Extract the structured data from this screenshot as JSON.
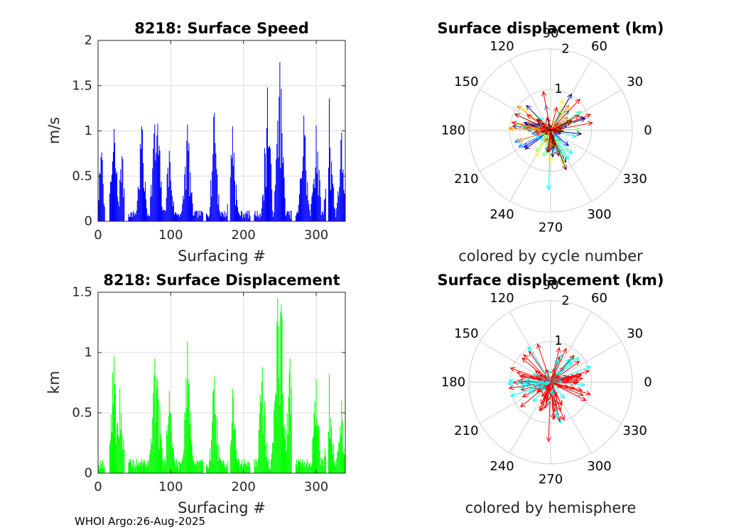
{
  "footer": "WHOI Argo:26-Aug-2025",
  "chart_data": [
    {
      "type": "bar",
      "title": "8218: Surface Speed",
      "xlabel": "Surfacing #",
      "ylabel": "m/s",
      "xlim": [
        0,
        340
      ],
      "ylim": [
        0,
        2
      ],
      "xticks": [
        "0",
        "100",
        "200",
        "300"
      ],
      "yticks": [
        "0",
        "0.5",
        "1",
        "1.5",
        "2"
      ],
      "color": "#0000ff",
      "peaks": [
        {
          "x": 5,
          "y": 0.76
        },
        {
          "x": 22,
          "y": 1.02
        },
        {
          "x": 33,
          "y": 0.72
        },
        {
          "x": 60,
          "y": 1.05
        },
        {
          "x": 78,
          "y": 1.07
        },
        {
          "x": 82,
          "y": 1.08
        },
        {
          "x": 98,
          "y": 0.78
        },
        {
          "x": 123,
          "y": 1.07
        },
        {
          "x": 160,
          "y": 1.2
        },
        {
          "x": 185,
          "y": 1.05
        },
        {
          "x": 233,
          "y": 1.48
        },
        {
          "x": 250,
          "y": 1.76
        },
        {
          "x": 283,
          "y": 1.17
        },
        {
          "x": 300,
          "y": 1.06
        },
        {
          "x": 318,
          "y": 1.36
        },
        {
          "x": 335,
          "y": 0.98
        }
      ],
      "gaps": [
        [
          10,
          15
        ],
        [
          37,
          41
        ],
        [
          145,
          148
        ],
        [
          179,
          181
        ],
        [
          210,
          214
        ],
        [
          267,
          271
        ],
        [
          314,
          316
        ]
      ]
    },
    {
      "type": "polar-compass",
      "title": "Surface displacement (km)",
      "subtitle": "colored by cycle number",
      "angle_labels": [
        "0",
        "30",
        "60",
        "90",
        "120",
        "150",
        "180",
        "210",
        "240",
        "270",
        "300",
        "330"
      ],
      "radial_labels": [
        "1",
        "2"
      ],
      "rmax": 2,
      "colormap": [
        "#00008f",
        "#0000ff",
        "#0080ff",
        "#00ffff",
        "#80ff80",
        "#ffff00",
        "#ff8000",
        "#ff0000",
        "#800000"
      ]
    },
    {
      "type": "bar",
      "title": "8218: Surface Displacement",
      "xlabel": "Surfacing #",
      "ylabel": "km",
      "xlim": [
        0,
        340
      ],
      "ylim": [
        0,
        1.5
      ],
      "xticks": [
        "0",
        "100",
        "200",
        "300"
      ],
      "yticks": [
        "0",
        "0.5",
        "1",
        "1.5"
      ],
      "color": "#00ff00",
      "peaks": [
        {
          "x": 22,
          "y": 0.97
        },
        {
          "x": 30,
          "y": 0.7
        },
        {
          "x": 78,
          "y": 0.95
        },
        {
          "x": 82,
          "y": 0.78
        },
        {
          "x": 98,
          "y": 0.68
        },
        {
          "x": 123,
          "y": 1.09
        },
        {
          "x": 160,
          "y": 0.8
        },
        {
          "x": 185,
          "y": 0.7
        },
        {
          "x": 226,
          "y": 0.88
        },
        {
          "x": 247,
          "y": 1.45
        },
        {
          "x": 252,
          "y": 1.4
        },
        {
          "x": 264,
          "y": 0.95
        },
        {
          "x": 300,
          "y": 0.78
        },
        {
          "x": 318,
          "y": 0.82
        },
        {
          "x": 335,
          "y": 0.6
        }
      ],
      "gaps": [
        [
          10,
          15
        ],
        [
          37,
          41
        ],
        [
          145,
          148
        ],
        [
          179,
          181
        ],
        [
          210,
          214
        ],
        [
          267,
          271
        ],
        [
          314,
          316
        ]
      ]
    },
    {
      "type": "polar-compass",
      "title": "Surface displacement (km)",
      "subtitle": "colored by hemisphere",
      "angle_labels": [
        "0",
        "30",
        "60",
        "90",
        "120",
        "150",
        "180",
        "210",
        "240",
        "270",
        "300",
        "330"
      ],
      "radial_labels": [
        "1",
        "2"
      ],
      "rmax": 2,
      "colormap": [
        "#ff0000",
        "#ff0000",
        "#ff0000",
        "#00ffff"
      ]
    }
  ]
}
